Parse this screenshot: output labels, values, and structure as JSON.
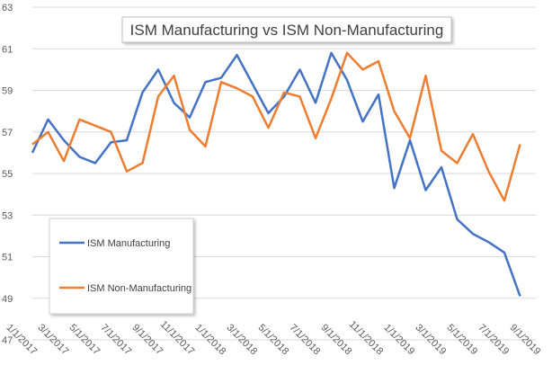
{
  "chart_data": {
    "type": "line",
    "title": "ISM Manufacturing vs ISM Non-Manufacturing",
    "xlabel": "",
    "ylabel": "",
    "ylim": [
      47,
      63
    ],
    "yticks": [
      "47",
      "49",
      "51",
      "53",
      "55",
      "57",
      "59",
      "61",
      "63"
    ],
    "xticks": [
      "1/1/2017",
      "3/1/2017",
      "5/1/2017",
      "7/1/2017",
      "9/1/2017",
      "11/1/2017",
      "1/1/2018",
      "3/1/2018",
      "5/1/2018",
      "7/1/2018",
      "9/1/2018",
      "11/1/2018",
      "1/1/2019",
      "3/1/2019",
      "5/1/2019",
      "7/1/2019",
      "9/1/2019"
    ],
    "x": [
      "2016-12",
      "2017-01",
      "2017-02",
      "2017-03",
      "2017-04",
      "2017-05",
      "2017-06",
      "2017-07",
      "2017-08",
      "2017-09",
      "2017-10",
      "2017-11",
      "2017-12",
      "2018-01",
      "2018-02",
      "2018-03",
      "2018-04",
      "2018-05",
      "2018-06",
      "2018-07",
      "2018-08",
      "2018-09",
      "2018-10",
      "2018-11",
      "2018-12",
      "2019-01",
      "2019-02",
      "2019-03",
      "2019-04",
      "2019-05",
      "2019-06",
      "2019-07",
      "2019-08"
    ],
    "series": [
      {
        "name": "ISM Manufacturing",
        "color": "#4472c4",
        "values": [
          56.0,
          57.6,
          56.6,
          55.8,
          55.5,
          56.5,
          56.6,
          58.9,
          60.0,
          58.4,
          57.7,
          59.4,
          59.6,
          60.7,
          59.3,
          57.9,
          58.7,
          60.0,
          58.4,
          60.8,
          59.5,
          57.5,
          58.8,
          54.3,
          56.6,
          54.2,
          55.3,
          52.8,
          52.1,
          51.7,
          51.2,
          49.1,
          null
        ]
      },
      {
        "name": "ISM Non-Manufacturing",
        "color": "#ed7d31",
        "values": [
          56.4,
          57.0,
          55.6,
          57.6,
          57.3,
          57.0,
          55.1,
          55.5,
          58.7,
          59.7,
          57.1,
          56.3,
          59.4,
          59.1,
          58.7,
          57.2,
          58.9,
          58.7,
          56.7,
          58.6,
          60.8,
          60.0,
          60.4,
          58.0,
          56.7,
          59.7,
          56.1,
          55.5,
          56.9,
          55.1,
          53.7,
          56.4,
          null
        ]
      }
    ],
    "legend_position": "left-middle",
    "grid": true
  }
}
